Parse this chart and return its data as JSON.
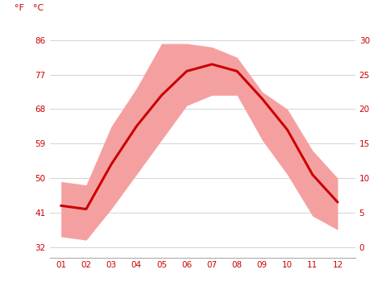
{
  "months": [
    1,
    2,
    3,
    4,
    5,
    6,
    7,
    8,
    9,
    10,
    11,
    12
  ],
  "x_labels": [
    "01",
    "02",
    "03",
    "04",
    "05",
    "06",
    "07",
    "08",
    "09",
    "10",
    "11",
    "12"
  ],
  "mean_temp": [
    6.0,
    5.5,
    12.0,
    17.5,
    22.0,
    25.5,
    26.5,
    25.5,
    21.5,
    17.0,
    10.5,
    6.5
  ],
  "max_temp": [
    9.5,
    9.0,
    17.5,
    23.0,
    29.5,
    29.5,
    29.0,
    27.5,
    22.5,
    20.0,
    14.0,
    10.0
  ],
  "min_temp": [
    1.5,
    1.0,
    5.5,
    10.5,
    15.5,
    20.5,
    22.0,
    22.0,
    15.5,
    10.5,
    4.5,
    2.5
  ],
  "line_color": "#cc0000",
  "band_color": "#f5a0a0",
  "background_color": "#ffffff",
  "grid_color": "#cccccc",
  "label_color": "#cc0000",
  "yticks_c": [
    0,
    5,
    10,
    15,
    20,
    25,
    30
  ],
  "yticks_f": [
    32,
    41,
    50,
    59,
    68,
    77,
    86
  ],
  "ylim_c": [
    -1.5,
    32.5
  ],
  "xlim": [
    0.55,
    12.7
  ]
}
